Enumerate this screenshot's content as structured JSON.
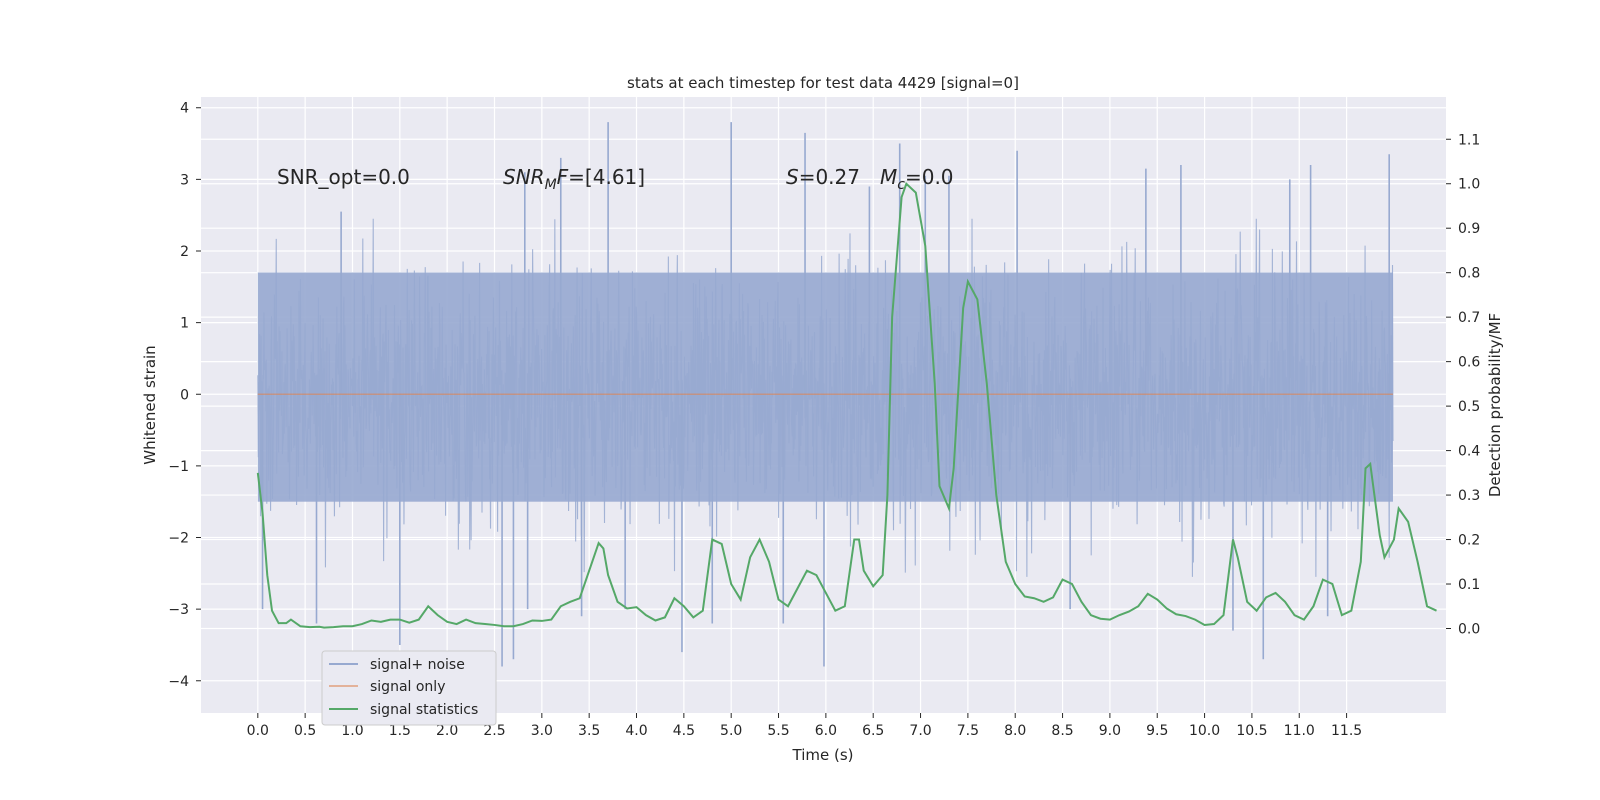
{
  "chart_data": {
    "type": "line",
    "title": "stats at each timestep for test data 4429 [signal=0]",
    "xlabel": "Time (s)",
    "ylabel": "Whitened strain",
    "y2label": "Detection probability/MF",
    "xlim": [
      -0.6,
      12.55
    ],
    "ylim": [
      -4.45,
      4.15
    ],
    "y2lim": [
      -0.19,
      1.195
    ],
    "x_ticks": [
      "0.0",
      "0.5",
      "1.0",
      "1.5",
      "2.0",
      "2.5",
      "3.0",
      "3.5",
      "4.0",
      "4.5",
      "5.0",
      "5.5",
      "6.0",
      "6.5",
      "7.0",
      "7.5",
      "8.0",
      "8.5",
      "9.0",
      "9.5",
      "10.0",
      "10.5",
      "11.0",
      "11.5"
    ],
    "y_ticks": [
      "4",
      "3",
      "2",
      "1",
      "0",
      "−1",
      "−2",
      "−3",
      "−4"
    ],
    "y2_ticks": [
      "1.1",
      "1.0",
      "0.9",
      "0.8",
      "0.7",
      "0.6",
      "0.5",
      "0.4",
      "0.3",
      "0.2",
      "0.1",
      "0.0"
    ],
    "grid": true,
    "legend_position": "lower-left",
    "annotations": {
      "snr_opt": "SNR_opt=0.0",
      "snr_mf_pre": "SNR",
      "snr_mf_sub": "M",
      "snr_mf_post": "F=[4.61]",
      "s_sym": "S",
      "s_val": "=0.27",
      "mc_sym": "M",
      "mc_sub": "c",
      "mc_val": "=0.0"
    },
    "series": [
      {
        "name": "signal+ noise",
        "color": "#97a9d0",
        "x_range": [
          0,
          11.99
        ],
        "band_typical": [
          -1.5,
          1.7
        ],
        "peak_values": [
          [
            0.05,
            -3.0
          ],
          [
            0.62,
            -3.2
          ],
          [
            0.88,
            2.55
          ],
          [
            1.5,
            -3.5
          ],
          [
            2.58,
            -3.8
          ],
          [
            2.7,
            -3.7
          ],
          [
            2.82,
            3.1
          ],
          [
            2.85,
            -3.0
          ],
          [
            3.2,
            3.3
          ],
          [
            3.42,
            -3.1
          ],
          [
            3.7,
            3.8
          ],
          [
            3.88,
            -3.0
          ],
          [
            4.48,
            -3.6
          ],
          [
            4.8,
            -3.2
          ],
          [
            5.0,
            3.8
          ],
          [
            5.55,
            -3.2
          ],
          [
            5.78,
            3.65
          ],
          [
            5.98,
            -3.8
          ],
          [
            6.46,
            2.9
          ],
          [
            6.78,
            3.5
          ],
          [
            7.05,
            3.05
          ],
          [
            7.3,
            3.05
          ],
          [
            8.02,
            3.4
          ],
          [
            8.58,
            -3.0
          ],
          [
            9.38,
            3.15
          ],
          [
            9.75,
            3.2
          ],
          [
            10.3,
            -3.3
          ],
          [
            10.62,
            -3.7
          ],
          [
            10.9,
            3.0
          ],
          [
            11.12,
            3.2
          ],
          [
            11.3,
            -3.1
          ],
          [
            11.95,
            3.35
          ]
        ]
      },
      {
        "name": "signal only",
        "color": "#dd8452",
        "values": [
          [
            0,
            0
          ],
          [
            11.99,
            0
          ]
        ]
      },
      {
        "name": "signal statistics",
        "color": "#55a868",
        "axis": "right",
        "values": [
          [
            0.0,
            0.35
          ],
          [
            0.05,
            0.26
          ],
          [
            0.1,
            0.12
          ],
          [
            0.15,
            0.04
          ],
          [
            0.22,
            0.012
          ],
          [
            0.3,
            0.012
          ],
          [
            0.35,
            0.02
          ],
          [
            0.45,
            0.005
          ],
          [
            0.55,
            0.003
          ],
          [
            0.65,
            0.004
          ],
          [
            0.7,
            0.002
          ],
          [
            0.8,
            0.003
          ],
          [
            0.9,
            0.005
          ],
          [
            1.0,
            0.005
          ],
          [
            1.1,
            0.01
          ],
          [
            1.2,
            0.018
          ],
          [
            1.3,
            0.015
          ],
          [
            1.4,
            0.02
          ],
          [
            1.5,
            0.02
          ],
          [
            1.6,
            0.013
          ],
          [
            1.7,
            0.02
          ],
          [
            1.8,
            0.05
          ],
          [
            1.9,
            0.03
          ],
          [
            2.0,
            0.015
          ],
          [
            2.1,
            0.01
          ],
          [
            2.2,
            0.02
          ],
          [
            2.3,
            0.012
          ],
          [
            2.4,
            0.01
          ],
          [
            2.5,
            0.008
          ],
          [
            2.6,
            0.005
          ],
          [
            2.7,
            0.005
          ],
          [
            2.8,
            0.01
          ],
          [
            2.9,
            0.018
          ],
          [
            3.0,
            0.017
          ],
          [
            3.1,
            0.02
          ],
          [
            3.2,
            0.05
          ],
          [
            3.3,
            0.06
          ],
          [
            3.4,
            0.068
          ],
          [
            3.5,
            0.13
          ],
          [
            3.6,
            0.192
          ],
          [
            3.65,
            0.18
          ],
          [
            3.7,
            0.12
          ],
          [
            3.8,
            0.06
          ],
          [
            3.9,
            0.045
          ],
          [
            4.0,
            0.048
          ],
          [
            4.1,
            0.03
          ],
          [
            4.2,
            0.018
          ],
          [
            4.3,
            0.025
          ],
          [
            4.4,
            0.068
          ],
          [
            4.5,
            0.05
          ],
          [
            4.6,
            0.025
          ],
          [
            4.7,
            0.04
          ],
          [
            4.8,
            0.2
          ],
          [
            4.9,
            0.19
          ],
          [
            5.0,
            0.1
          ],
          [
            5.1,
            0.065
          ],
          [
            5.2,
            0.16
          ],
          [
            5.3,
            0.2
          ],
          [
            5.4,
            0.15
          ],
          [
            5.5,
            0.065
          ],
          [
            5.6,
            0.05
          ],
          [
            5.7,
            0.09
          ],
          [
            5.8,
            0.13
          ],
          [
            5.9,
            0.12
          ],
          [
            6.0,
            0.08
          ],
          [
            6.1,
            0.04
          ],
          [
            6.2,
            0.05
          ],
          [
            6.3,
            0.2
          ],
          [
            6.35,
            0.2
          ],
          [
            6.4,
            0.13
          ],
          [
            6.5,
            0.095
          ],
          [
            6.6,
            0.12
          ],
          [
            6.65,
            0.3
          ],
          [
            6.7,
            0.7
          ],
          [
            6.8,
            0.97
          ],
          [
            6.85,
            1.0
          ],
          [
            6.95,
            0.98
          ],
          [
            7.05,
            0.86
          ],
          [
            7.15,
            0.55
          ],
          [
            7.2,
            0.32
          ],
          [
            7.3,
            0.27
          ],
          [
            7.35,
            0.36
          ],
          [
            7.45,
            0.72
          ],
          [
            7.5,
            0.78
          ],
          [
            7.6,
            0.74
          ],
          [
            7.7,
            0.55
          ],
          [
            7.8,
            0.3
          ],
          [
            7.9,
            0.15
          ],
          [
            8.0,
            0.1
          ],
          [
            8.1,
            0.072
          ],
          [
            8.2,
            0.068
          ],
          [
            8.3,
            0.06
          ],
          [
            8.4,
            0.07
          ],
          [
            8.5,
            0.11
          ],
          [
            8.6,
            0.1
          ],
          [
            8.7,
            0.06
          ],
          [
            8.8,
            0.03
          ],
          [
            8.9,
            0.022
          ],
          [
            9.0,
            0.02
          ],
          [
            9.1,
            0.03
          ],
          [
            9.2,
            0.038
          ],
          [
            9.3,
            0.05
          ],
          [
            9.4,
            0.078
          ],
          [
            9.5,
            0.065
          ],
          [
            9.6,
            0.045
          ],
          [
            9.7,
            0.032
          ],
          [
            9.8,
            0.028
          ],
          [
            9.9,
            0.02
          ],
          [
            10.0,
            0.008
          ],
          [
            10.1,
            0.01
          ],
          [
            10.2,
            0.03
          ],
          [
            10.3,
            0.2
          ],
          [
            10.35,
            0.16
          ],
          [
            10.45,
            0.06
          ],
          [
            10.55,
            0.04
          ],
          [
            10.65,
            0.07
          ],
          [
            10.75,
            0.08
          ],
          [
            10.85,
            0.06
          ],
          [
            10.95,
            0.03
          ],
          [
            11.05,
            0.02
          ],
          [
            11.15,
            0.05
          ],
          [
            11.25,
            0.11
          ],
          [
            11.35,
            0.1
          ],
          [
            11.45,
            0.03
          ],
          [
            11.55,
            0.04
          ],
          [
            11.65,
            0.15
          ],
          [
            11.7,
            0.36
          ],
          [
            11.75,
            0.37
          ],
          [
            11.85,
            0.21
          ],
          [
            11.9,
            0.16
          ],
          [
            12.0,
            0.2
          ],
          [
            12.05,
            0.27
          ],
          [
            12.15,
            0.24
          ],
          [
            12.25,
            0.15
          ],
          [
            12.35,
            0.05
          ],
          [
            12.45,
            0.04
          ]
        ]
      }
    ]
  }
}
